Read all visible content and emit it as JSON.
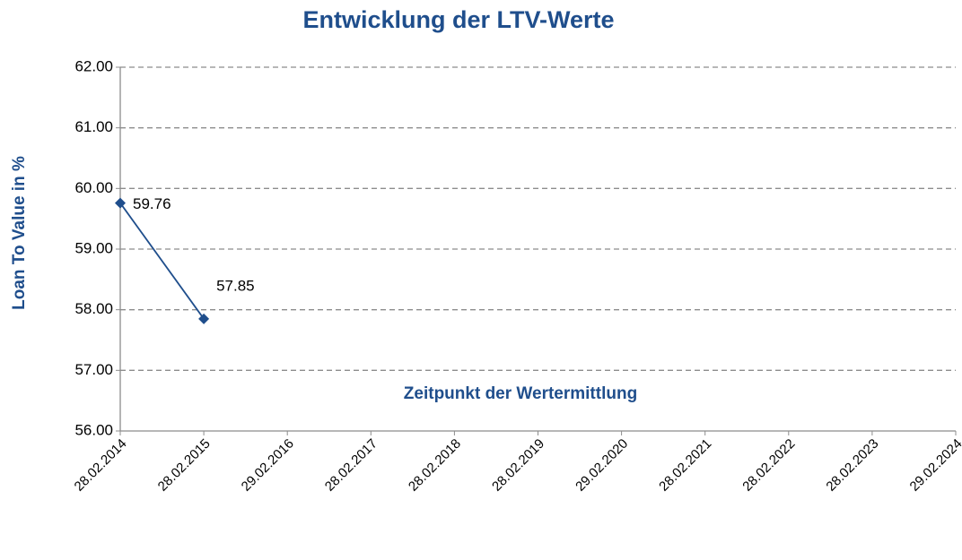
{
  "chart_data": {
    "type": "line",
    "title": "Entwicklung der LTV-Werte",
    "x_label": "Zeitpunkt der Wertermittlung",
    "y_label": "Loan To Value in %",
    "categories": [
      "28.02.2014",
      "28.02.2015",
      "29.02.2016",
      "28.02.2017",
      "28.02.2018",
      "28.02.2019",
      "29.02.2020",
      "28.02.2021",
      "28.02.2022",
      "28.02.2023",
      "29.02.2024"
    ],
    "series": [
      {
        "name": "LTV",
        "color": "#1f4e8c",
        "values": [
          59.76,
          57.85,
          null,
          null,
          null,
          null,
          null,
          null,
          null,
          null,
          null
        ]
      }
    ],
    "ylim": [
      56,
      62
    ],
    "yticks": [
      {
        "value": 56,
        "label": "56.00"
      },
      {
        "value": 57,
        "label": "57.00"
      },
      {
        "value": 58,
        "label": "58.00"
      },
      {
        "value": 59,
        "label": "59.00"
      },
      {
        "value": 60,
        "label": "60.00"
      },
      {
        "value": 61,
        "label": "61.00"
      },
      {
        "value": 62,
        "label": "62.00"
      }
    ],
    "grid": true
  }
}
